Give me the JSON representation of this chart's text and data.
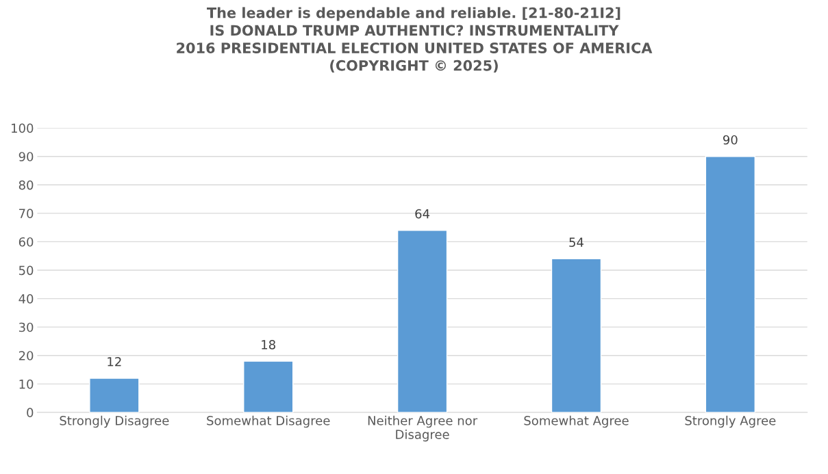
{
  "chart_data": {
    "type": "bar",
    "title": "The leader is dependable and reliable. [21-80-21I2]\nIS DONALD TRUMP AUTHENTIC? INSTRUMENTALITY\n2016 PRESIDENTIAL ELECTION UNITED STATES OF AMERICA\n(COPYRIGHT © 2025)",
    "categories": [
      "Strongly Disagree",
      "Somewhat Disagree",
      "Neither Agree nor\nDisagree",
      "Somewhat Agree",
      "Strongly Agree"
    ],
    "values": [
      12,
      18,
      64,
      54,
      90
    ],
    "color": "#5b9bd5",
    "ylim": [
      0,
      100
    ],
    "yticks": [
      0,
      10,
      20,
      30,
      40,
      50,
      60,
      70,
      80,
      90,
      100
    ],
    "grid": "y",
    "data_labels": true,
    "legend": false
  }
}
